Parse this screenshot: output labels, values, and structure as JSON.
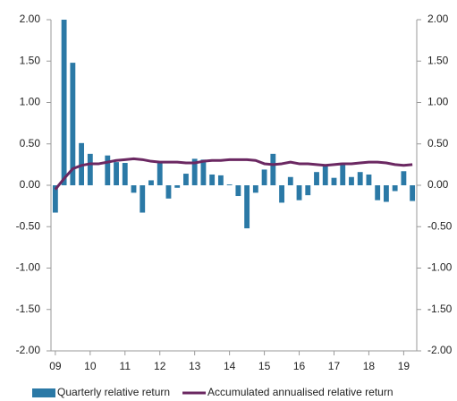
{
  "chart_data": {
    "type": "combo",
    "categories": [
      "09",
      null,
      null,
      null,
      "10",
      null,
      null,
      null,
      "11",
      null,
      null,
      null,
      "12",
      null,
      null,
      null,
      "13",
      null,
      null,
      null,
      "14",
      null,
      null,
      null,
      "15",
      null,
      null,
      null,
      "16",
      null,
      null,
      null,
      "17",
      null,
      null,
      null,
      "18",
      null,
      null,
      null,
      "19",
      null
    ],
    "series": [
      {
        "name": "Quarterly relative return",
        "type": "bar",
        "color": "#2b79a6",
        "values": [
          -0.33,
          2.0,
          1.48,
          0.51,
          0.38,
          0.0,
          0.36,
          0.28,
          0.27,
          -0.09,
          -0.33,
          0.06,
          0.28,
          -0.16,
          -0.03,
          0.14,
          0.32,
          0.31,
          0.13,
          0.12,
          0.01,
          -0.13,
          -0.52,
          -0.09,
          0.19,
          0.38,
          -0.21,
          0.1,
          -0.18,
          -0.12,
          0.16,
          0.25,
          0.09,
          0.25,
          0.1,
          0.16,
          0.13,
          -0.18,
          -0.2,
          -0.07,
          0.17,
          -0.19
        ]
      },
      {
        "name": "Accumulated annualised relative return",
        "type": "line",
        "color": "#6b2862",
        "values": [
          -0.05,
          0.08,
          0.2,
          0.24,
          0.26,
          0.26,
          0.28,
          0.3,
          0.31,
          0.32,
          0.31,
          0.29,
          0.28,
          0.28,
          0.28,
          0.27,
          0.27,
          0.29,
          0.3,
          0.3,
          0.31,
          0.31,
          0.31,
          0.3,
          0.26,
          0.25,
          0.26,
          0.28,
          0.26,
          0.26,
          0.25,
          0.24,
          0.25,
          0.26,
          0.26,
          0.27,
          0.28,
          0.28,
          0.27,
          0.25,
          0.24,
          0.25
        ]
      }
    ],
    "ylim": [
      -2,
      2
    ],
    "yticks": [
      {
        "value": -2,
        "label": "-2.00"
      },
      {
        "value": -1.5,
        "label": "-1.50"
      },
      {
        "value": -1,
        "label": "-1.00"
      },
      {
        "value": -0.5,
        "label": "-0.50"
      },
      {
        "value": 0,
        "label": "0.00"
      },
      {
        "value": 0.5,
        "label": "0.50"
      },
      {
        "value": 1,
        "label": "1.00"
      },
      {
        "value": 1.5,
        "label": "1.50"
      },
      {
        "value": 2,
        "label": "2.00"
      }
    ],
    "y2lim": [
      -2,
      2
    ],
    "y2ticks": [
      {
        "value": -2,
        "label": "-2.00"
      },
      {
        "value": -1.5,
        "label": "-1.50"
      },
      {
        "value": -1,
        "label": "-1.00"
      },
      {
        "value": -0.5,
        "label": "-0.50"
      },
      {
        "value": 0,
        "label": "0.00"
      },
      {
        "value": 0.5,
        "label": "0.50"
      },
      {
        "value": 1,
        "label": "1.00"
      },
      {
        "value": 1.5,
        "label": "1.50"
      },
      {
        "value": 2,
        "label": "2.00"
      }
    ],
    "legend": "bottom"
  }
}
